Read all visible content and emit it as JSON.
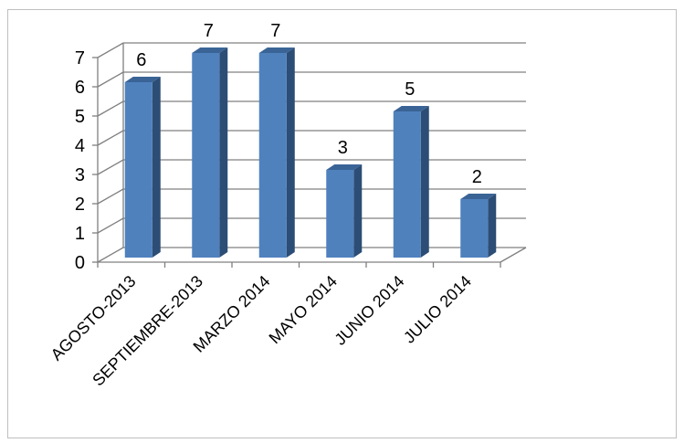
{
  "chart_data": {
    "type": "bar",
    "style": "3d-column",
    "categories": [
      "AGOSTO-2013",
      "SEPTIEMBRE-2013",
      "MARZO 2014",
      "MAYO 2014",
      "JUNIO 2014",
      "JULIO 2014"
    ],
    "values": [
      6,
      7,
      7,
      3,
      5,
      2
    ],
    "title": "",
    "xlabel": "",
    "ylabel": "",
    "ylim": [
      0,
      7
    ],
    "yticks": [
      0,
      1,
      2,
      3,
      4,
      5,
      6,
      7
    ],
    "grid": true,
    "legend": "none",
    "data_labels": true,
    "colors": {
      "bar_front": "#4f81bd",
      "bar_side": "#2c4d75",
      "bar_top": "#3a6496",
      "grid": "#808080"
    }
  }
}
